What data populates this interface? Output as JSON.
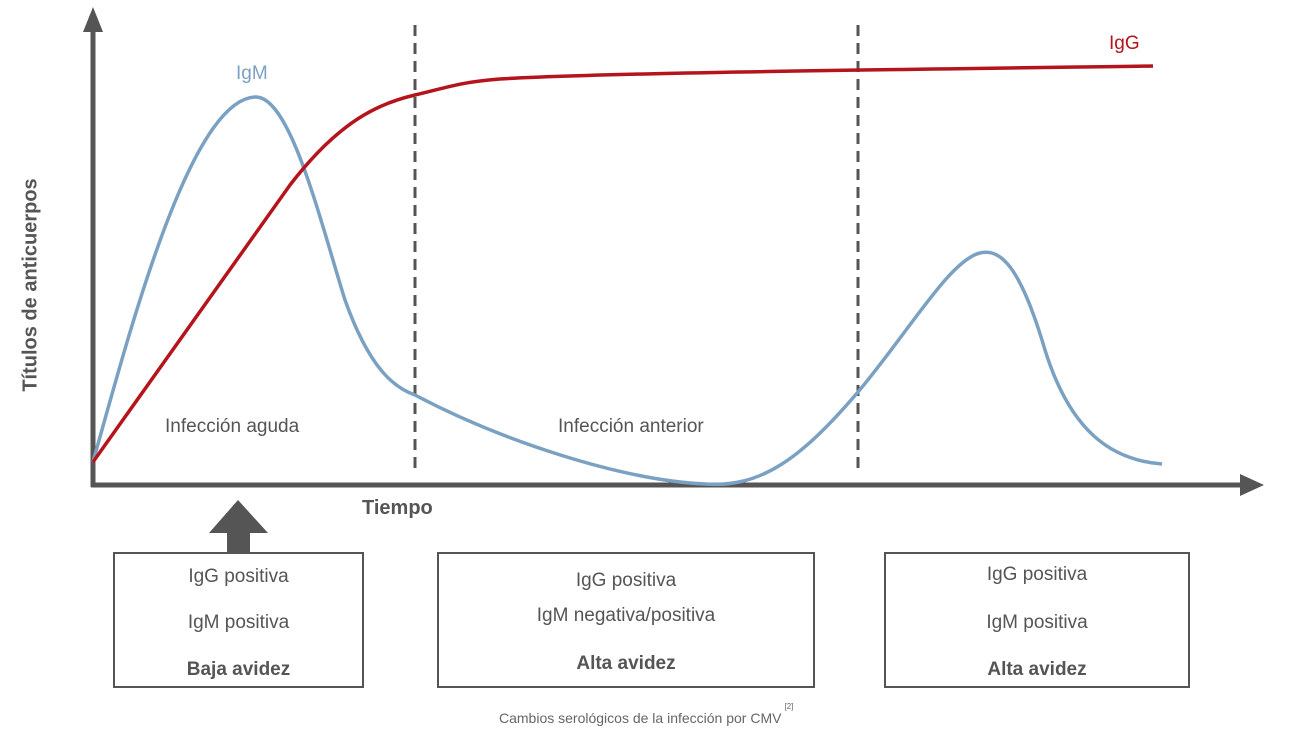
{
  "y_axis_label": "Títulos de anticuerpos",
  "x_axis_label": "Tiempo",
  "series": {
    "igm": {
      "label": "IgM",
      "color": "#7ba1c2"
    },
    "igg": {
      "label": "IgG",
      "color": "#b5141c"
    }
  },
  "phases": [
    "Infección aguda",
    "Infección anterior"
  ],
  "boxes": [
    {
      "line1": "IgG positiva",
      "line2": "IgM positiva",
      "avidity": "Baja avidez"
    },
    {
      "line1": "IgG positiva",
      "line2": "IgM negativa/positiva",
      "avidity": "Alta avidez"
    },
    {
      "line1": "IgG positiva",
      "line2": "IgM positiva",
      "avidity": "Alta avidez"
    }
  ],
  "caption": "Cambios serológicos de la infección por CMV",
  "caption_ref": "[2]"
}
